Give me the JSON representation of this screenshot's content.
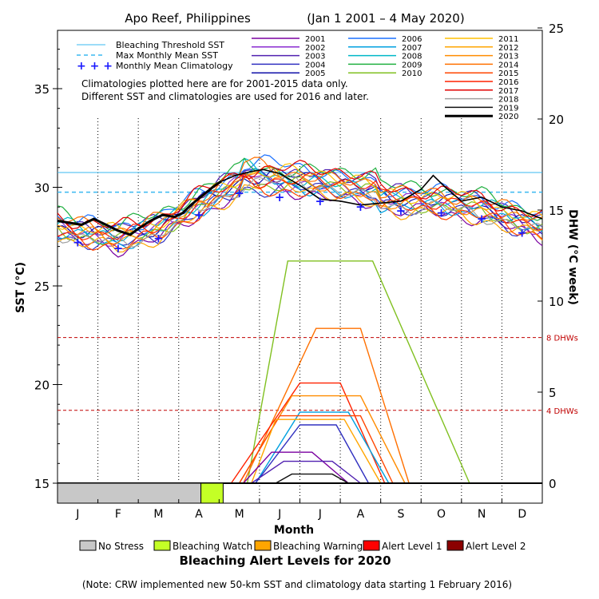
{
  "chart_data": {
    "type": "line",
    "title": "Apo Reef, Philippines",
    "date_range": "(Jan 1 2001 – 4 May 2020)",
    "xlabel": "Month",
    "ylabel_left": "SST (°C)",
    "ylabel_right": "DHW (°C week)",
    "months": [
      "J",
      "F",
      "M",
      "A",
      "M",
      "J",
      "J",
      "A",
      "S",
      "O",
      "N",
      "D"
    ],
    "sst_axis": {
      "min": 15,
      "max": 37.2,
      "ticks": [
        15,
        20,
        25,
        30,
        35
      ]
    },
    "dhw_axis": {
      "min": 0,
      "max": 25,
      "ticks": [
        0,
        5,
        10,
        15,
        20,
        25
      ]
    },
    "grid": "dotted vertical lines at month boundaries",
    "bleaching_threshold_sst": 30.75,
    "max_monthly_mean_sst": 29.75,
    "dhw_reference_lines": [
      {
        "value": 8,
        "label": "8 DHWs"
      },
      {
        "value": 4,
        "label": "4 DHWs"
      }
    ],
    "monthly_mean_climatology": {
      "x": [
        0.5,
        1.5,
        2.5,
        3.5,
        4.5,
        5.5,
        6.5,
        7.5,
        8.5,
        9.5,
        10.5,
        11.5
      ],
      "y": [
        27.2,
        26.9,
        27.4,
        28.6,
        29.7,
        29.5,
        29.3,
        29.0,
        28.8,
        28.7,
        28.4,
        27.7
      ]
    },
    "legend_lines": {
      "threshold": "Bleaching Threshold SST",
      "mmm": "Max Monthly Mean SST",
      "climatology": "Monthly Mean Climatology"
    },
    "note_line1": "Climatologies plotted here are for 2001-2015 data only.",
    "note_line2": "Different SST and climatologies are used for 2016 and later.",
    "series": [
      {
        "name": "2001",
        "color": "#7a00a0"
      },
      {
        "name": "2002",
        "color": "#8a2bd0"
      },
      {
        "name": "2003",
        "color": "#5020b0"
      },
      {
        "name": "2004",
        "color": "#3030c0"
      },
      {
        "name": "2005",
        "color": "#1010a8"
      },
      {
        "name": "2006",
        "color": "#1a70ff"
      },
      {
        "name": "2007",
        "color": "#00a0e0"
      },
      {
        "name": "2008",
        "color": "#00b8c8"
      },
      {
        "name": "2009",
        "color": "#20b040"
      },
      {
        "name": "2010",
        "color": "#80c020"
      },
      {
        "name": "2011",
        "color": "#ffc000"
      },
      {
        "name": "2012",
        "color": "#ffa500"
      },
      {
        "name": "2013",
        "color": "#ff8c00"
      },
      {
        "name": "2014",
        "color": "#ff7000"
      },
      {
        "name": "2015",
        "color": "#ff4500"
      },
      {
        "name": "2016",
        "color": "#ff2200"
      },
      {
        "name": "2017",
        "color": "#e00000"
      },
      {
        "name": "2018",
        "color": "#a0a0a0"
      },
      {
        "name": "2019",
        "color": "#101010"
      },
      {
        "name": "2020",
        "color": "#000000"
      }
    ],
    "dhw_curves": [
      {
        "year": "2010",
        "color": "#80c020",
        "peak": 12.2,
        "start": 4.7,
        "rise": 5.7,
        "fall": 7.8,
        "end": 10.2
      },
      {
        "year": "2014",
        "color": "#ff7000",
        "peak": 8.5,
        "start": 4.6,
        "rise": 6.4,
        "fall": 7.5,
        "end": 8.7
      },
      {
        "year": "2016",
        "color": "#ff2200",
        "peak": 5.5,
        "start": 4.3,
        "rise": 6.0,
        "fall": 7.0,
        "end": 8.1
      },
      {
        "year": "2013",
        "color": "#ff8c00",
        "peak": 4.8,
        "start": 4.5,
        "rise": 5.8,
        "fall": 7.5,
        "end": 8.6
      },
      {
        "year": "2007",
        "color": "#00a0e0",
        "peak": 3.9,
        "start": 4.9,
        "rise": 6.0,
        "fall": 7.2,
        "end": 8.2
      },
      {
        "year": "2015",
        "color": "#ff4500",
        "peak": 3.7,
        "start": 4.5,
        "rise": 5.5,
        "fall": 7.5,
        "end": 8.3
      },
      {
        "year": "2012",
        "color": "#ffa500",
        "peak": 3.5,
        "start": 4.8,
        "rise": 5.4,
        "fall": 7.1,
        "end": 8.0
      },
      {
        "year": "2004",
        "color": "#3030c0",
        "peak": 3.2,
        "start": 4.9,
        "rise": 6.0,
        "fall": 6.9,
        "end": 7.7
      },
      {
        "year": "2001",
        "color": "#7a00a0",
        "peak": 1.7,
        "start": 4.6,
        "rise": 5.3,
        "fall": 6.3,
        "end": 7.2
      },
      {
        "year": "2003",
        "color": "#5020b0",
        "peak": 1.2,
        "start": 4.8,
        "rise": 5.6,
        "fall": 6.8,
        "end": 7.5
      },
      {
        "year": "2019",
        "color": "#101010",
        "peak": 0.5,
        "start": 5.4,
        "rise": 5.8,
        "fall": 6.8,
        "end": 7.2
      }
    ],
    "sst_2020": {
      "x": [
        0.0,
        0.3,
        0.6,
        0.9,
        1.2,
        1.5,
        1.8,
        2.0,
        2.3,
        2.6,
        2.9,
        3.1,
        3.3,
        3.6,
        3.9,
        4.05
      ],
      "y": [
        28.3,
        28.2,
        28.1,
        28.4,
        28.1,
        27.8,
        27.6,
        27.9,
        28.3,
        28.6,
        28.5,
        28.7,
        29.1,
        29.6,
        30.1,
        30.3
      ]
    },
    "sst_2019": {
      "x": [
        4.05,
        4.4,
        4.8,
        5.1,
        5.5,
        6.0,
        6.5,
        7.0,
        7.5,
        8.0,
        8.5,
        9.0,
        9.3,
        9.6,
        10.0,
        10.5,
        11.0,
        11.5,
        12.0
      ],
      "y": [
        30.3,
        30.6,
        30.8,
        30.9,
        30.7,
        30.1,
        29.4,
        29.3,
        29.1,
        29.2,
        29.3,
        29.9,
        30.6,
        30.0,
        29.3,
        29.5,
        29.0,
        28.8,
        28.4
      ]
    },
    "alert_bar": [
      {
        "level": "No Stress",
        "from": 0,
        "to": 3.55
      },
      {
        "level": "Bleaching Watch",
        "from": 3.55,
        "to": 4.1
      }
    ],
    "alert_legend": [
      {
        "label": "No Stress",
        "color": "#c8c8c8"
      },
      {
        "label": "Bleaching Watch",
        "color": "#c4ff26"
      },
      {
        "label": "Bleaching Warning",
        "color": "#ffa500"
      },
      {
        "label": "Alert Level 1",
        "color": "#ff0000"
      },
      {
        "label": "Alert Level 2",
        "color": "#8b0000"
      }
    ],
    "alert_title": "Bleaching Alert Levels for 2020",
    "footnote": "(Note: CRW implemented new 50-km SST and climatology data starting 1 February 2016)"
  }
}
